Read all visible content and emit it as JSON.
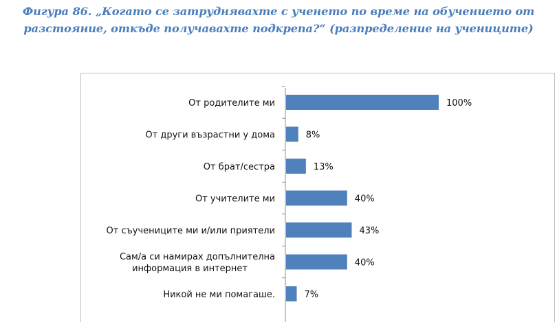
{
  "figure": {
    "caption": "Фигура 86. „Когато се затруднявахте с ученето по време на обучението от разстояние, откъде получавахте подкрепа?“ (разпределение на учениците)"
  },
  "chart_data": {
    "type": "bar",
    "orientation": "horizontal",
    "title": "",
    "xlabel": "",
    "ylabel": "",
    "xlim": [
      0,
      100
    ],
    "grid": false,
    "legend": "none",
    "bar_color": "#4f81bd",
    "categories": [
      [
        "От родителите ми"
      ],
      [
        "От други възрастни у дома"
      ],
      [
        "От брат/сестра"
      ],
      [
        "От учителите ми"
      ],
      [
        "От съучениците ми и/или приятели"
      ],
      [
        "Сам/а си намирах допълнителна",
        "информация в интернет"
      ],
      [
        "Никой не ми помагаше."
      ]
    ],
    "values": [
      100,
      8,
      13,
      40,
      43,
      40,
      7
    ],
    "value_labels": [
      "100%",
      "8%",
      "13%",
      "40%",
      "43%",
      "40%",
      "7%"
    ]
  }
}
